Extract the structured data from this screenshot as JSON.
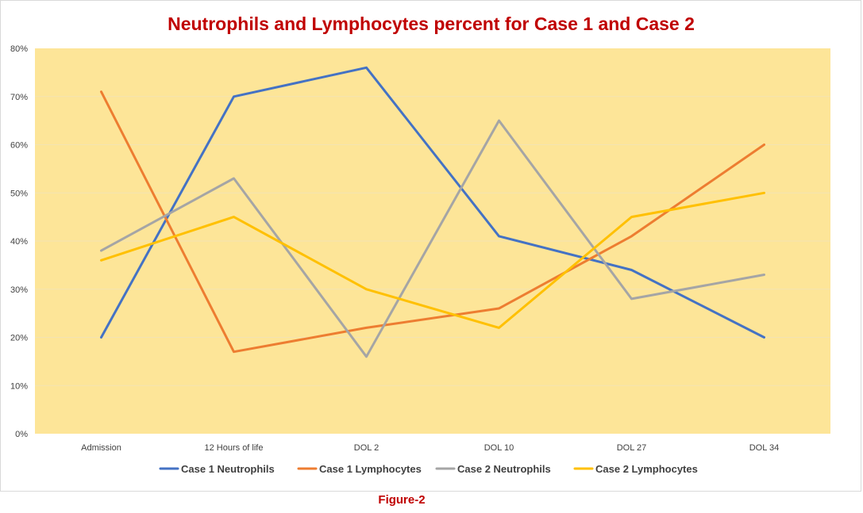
{
  "caption": "Figure-2",
  "colors": {
    "plot_background": "#fde598",
    "title": "#c00000",
    "caption": "#c00000",
    "gridline": "#f3e3b2"
  },
  "chart_data": {
    "type": "line",
    "title": "Neutrophils and Lymphocytes percent for Case 1 and Case 2",
    "xlabel": "",
    "ylabel": "",
    "categories": [
      "Admission",
      "12 Hours of life",
      "DOL 2",
      "DOL 10",
      "DOL 27",
      "DOL 34"
    ],
    "ylim": [
      0,
      80
    ],
    "y_ticks": [
      "0%",
      "10%",
      "20%",
      "30%",
      "40%",
      "50%",
      "60%",
      "70%",
      "80%"
    ],
    "y_unit": "%",
    "grid": true,
    "legend_position": "bottom",
    "series": [
      {
        "name": "Case 1 Neutrophils",
        "color": "#4472c4",
        "values": [
          20,
          70,
          76,
          41,
          34,
          20
        ]
      },
      {
        "name": "Case 1 Lymphocytes",
        "color": "#ed7d31",
        "values": [
          71,
          17,
          22,
          26,
          41,
          60
        ]
      },
      {
        "name": "Case 2 Neutrophils",
        "color": "#a5a5a5",
        "values": [
          38,
          53,
          16,
          65,
          28,
          33
        ]
      },
      {
        "name": "Case 2 Lymphocytes",
        "color": "#ffc000",
        "values": [
          36,
          45,
          30,
          22,
          45,
          50
        ]
      }
    ]
  }
}
